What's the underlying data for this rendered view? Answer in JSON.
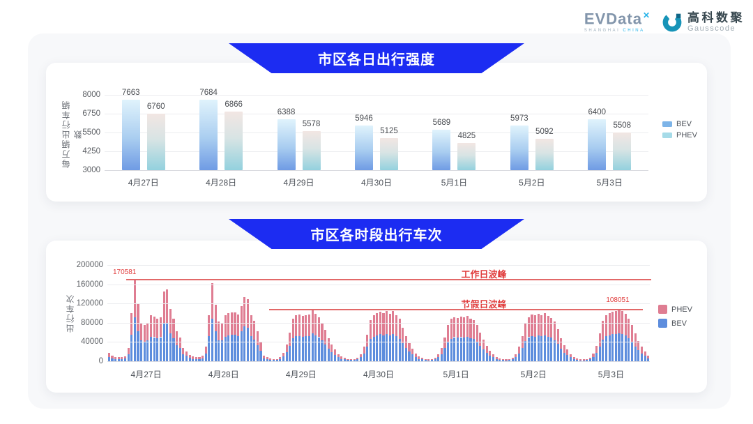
{
  "header": {
    "evdata": {
      "name": "EVData",
      "sup": "✕",
      "subtitle_left": "SHANGHAI",
      "subtitle_right": "CHINA"
    },
    "gausscode": {
      "cn": "高科数聚",
      "en": "Gausscode"
    }
  },
  "colors": {
    "banner_blue": "#1c2cf2",
    "bev_gradient_top": "#e0f3fc",
    "bev_gradient_bottom": "#6f9be4",
    "phev_gradient_top": "#f2e6e3",
    "phev_gradient_bottom": "#93d1de",
    "stacked_bev_blue": "#5d8ddd",
    "stacked_phev_pink": "#df7d92",
    "annotation_red": "#e03c3c",
    "legend1_bev": "#7db4e8",
    "legend1_phev": "#a6dbe8"
  },
  "chart_data": [
    {
      "type": "bar",
      "title": "市区各日出行强度",
      "ylabel": "每万辆出行车辆数",
      "categories": [
        "4月27日",
        "4月28日",
        "4月29日",
        "4月30日",
        "5月1日",
        "5月2日",
        "5月3日"
      ],
      "series": [
        {
          "name": "BEV",
          "values": [
            7663,
            7684,
            6388,
            5946,
            5689,
            5973,
            6400
          ]
        },
        {
          "name": "PHEV",
          "values": [
            6760,
            6866,
            5578,
            5125,
            4825,
            5092,
            5508
          ]
        }
      ],
      "ylim": [
        3000,
        8000
      ],
      "yticks": [
        3000,
        4250,
        5500,
        6750,
        8000
      ],
      "grid": true,
      "legend_position": "right",
      "data_labels": true
    },
    {
      "type": "bar",
      "stacked": true,
      "title": "市区各时段出行车次",
      "ylabel": "出行车次",
      "x_unit": "hour-of-day (24 bars per day)",
      "categories": [
        "4月27日",
        "4月28日",
        "4月29日",
        "4月30日",
        "5月1日",
        "5月2日",
        "5月3日"
      ],
      "ylim": [
        0,
        200000
      ],
      "yticks": [
        0,
        40000,
        80000,
        120000,
        160000,
        200000
      ],
      "grid": true,
      "legend_position": "right",
      "legend_order": [
        "PHEV",
        "BEV"
      ],
      "annotations": {
        "workday_peak": {
          "label": "工作日波峰",
          "value": 170581,
          "value_label": "170581"
        },
        "holiday_peak": {
          "label": "节假日波峰",
          "value": 108051,
          "value_label": "108051"
        }
      },
      "days": [
        {
          "date": "4月27日",
          "bev": [
            9000,
            6500,
            5000,
            4300,
            4300,
            5400,
            15000,
            55000,
            91000,
            62000,
            43000,
            41000,
            43000,
            51000,
            50000,
            48000,
            50000,
            78000,
            80000,
            58000,
            48000,
            33000,
            27000,
            15000
          ],
          "phev": [
            8000,
            5500,
            4000,
            3700,
            3700,
            4600,
            13000,
            45000,
            79581,
            57000,
            37000,
            35000,
            37000,
            44000,
            43000,
            40000,
            42000,
            67000,
            69000,
            50000,
            40000,
            29000,
            23000,
            13000
          ]
        },
        {
          "date": "4月28日",
          "bev": [
            11000,
            7000,
            5000,
            4000,
            4000,
            6000,
            16000,
            52000,
            88000,
            63000,
            44000,
            43000,
            51000,
            54000,
            55000,
            55000,
            52000,
            62000,
            72000,
            70000,
            52000,
            45000,
            34000,
            22000
          ],
          "phev": [
            9000,
            6000,
            5000,
            4000,
            4000,
            5000,
            14000,
            43000,
            75000,
            54000,
            38000,
            37000,
            44000,
            46000,
            46000,
            47000,
            45000,
            53000,
            62000,
            59000,
            44000,
            39000,
            29000,
            18000
          ]
        },
        {
          "date": "4月29日",
          "bev": [
            6000,
            4000,
            3000,
            3000,
            3000,
            4000,
            10000,
            19000,
            32000,
            48000,
            52000,
            52000,
            51000,
            52000,
            52000,
            58000,
            53000,
            50000,
            43000,
            35000,
            26000,
            19000,
            13000,
            8000
          ],
          "phev": [
            6000,
            4000,
            3000,
            2000,
            2000,
            4000,
            8000,
            16000,
            28000,
            40000,
            44000,
            45000,
            43000,
            44000,
            45000,
            49000,
            45000,
            42000,
            37000,
            30000,
            22000,
            16000,
            12000,
            7000
          ]
        },
        {
          "date": "4月30日",
          "bev": [
            5000,
            4000,
            3000,
            3000,
            3000,
            4000,
            8000,
            16000,
            30000,
            46000,
            51000,
            54000,
            56000,
            54000,
            57000,
            53000,
            56000,
            52000,
            47000,
            38000,
            28000,
            20000,
            14000,
            9000
          ],
          "phev": [
            5000,
            3000,
            2000,
            2000,
            2000,
            3000,
            7000,
            14000,
            25000,
            39000,
            44000,
            46000,
            47000,
            46000,
            48000,
            45000,
            48000,
            44000,
            41000,
            32000,
            24000,
            18000,
            12000,
            7000
          ]
        },
        {
          "date": "5月1日",
          "bev": [
            5000,
            4000,
            3000,
            2000,
            3000,
            4000,
            8000,
            15000,
            27000,
            40000,
            47000,
            50000,
            49000,
            50000,
            49000,
            51000,
            48000,
            46000,
            40000,
            32000,
            24000,
            17000,
            12000,
            8000
          ],
          "phev": [
            5000,
            3000,
            2000,
            2000,
            2000,
            3000,
            6000,
            13000,
            23000,
            35000,
            41000,
            42000,
            41000,
            43000,
            42000,
            43000,
            41000,
            39000,
            35000,
            28000,
            21000,
            15000,
            10000,
            6000
          ]
        },
        {
          "date": "5月2日",
          "bev": [
            5000,
            3000,
            3000,
            2000,
            3000,
            4000,
            8000,
            16000,
            28000,
            42000,
            50000,
            52000,
            51000,
            53000,
            52000,
            54000,
            51000,
            49000,
            44000,
            36000,
            26000,
            18000,
            13000,
            8000
          ],
          "phev": [
            4000,
            3000,
            2000,
            2000,
            2000,
            3000,
            7000,
            14000,
            24000,
            36000,
            42000,
            45000,
            44000,
            46000,
            44000,
            46000,
            43000,
            41000,
            38000,
            30000,
            22000,
            16000,
            11000,
            7000
          ]
        },
        {
          "date": "5月3日",
          "bev": [
            4000,
            3000,
            2000,
            2000,
            3000,
            4000,
            9000,
            17000,
            31000,
            45000,
            52000,
            54000,
            56000,
            57000,
            58000,
            56000,
            53000,
            48000,
            41000,
            31000,
            23000,
            16000,
            11000,
            6000
          ],
          "phev": [
            4000,
            3000,
            2000,
            2000,
            2000,
            3000,
            7000,
            15000,
            27000,
            39000,
            44000,
            46000,
            47000,
            48000,
            50051,
            48000,
            45000,
            40000,
            34000,
            27000,
            19000,
            14000,
            9000,
            6000
          ]
        }
      ]
    }
  ]
}
